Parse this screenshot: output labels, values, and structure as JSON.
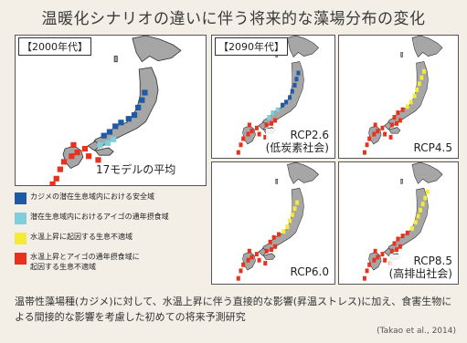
{
  "title": "温暖化シナリオの違いに伴う将来的な藻場分布の変化",
  "panels": {
    "p2000": {
      "period": "【2000年代】",
      "caption": "17モデルの平均"
    },
    "p2090": {
      "period": "【2090年代】"
    },
    "rcp26": {
      "scenario": "RCP2.6",
      "sub": "(低炭素社会)"
    },
    "rcp45": {
      "scenario": "RCP4.5"
    },
    "rcp60": {
      "scenario": "RCP6.0"
    },
    "rcp85": {
      "scenario": "RCP8.5",
      "sub": "(高排出社会)"
    }
  },
  "legend": [
    {
      "color": "#1f5aa6",
      "text": "カジメの潜在生息域内における安全域"
    },
    {
      "color": "#7ecfdc",
      "text": "潜在生息域内におけるアイゴの通年摂食域"
    },
    {
      "color": "#f5ea3a",
      "text": "水温上昇に起因する生息不適域"
    },
    {
      "color": "#e8321e",
      "text": "水温上昇とアイゴの通年摂食域に起因する生息不適域"
    }
  ],
  "description": "温帯性藻場種(カジメ)に対して、水温上昇に伴う直接的な影響(昇温ストレス)に加え、食害生物による間接的な影響を考慮した初めての将来予測研究",
  "citation": "(Takao et al., 2014)",
  "colors": {
    "land": "#a6a6a6",
    "sea": "#ffffff",
    "blue": "#1f5aa6",
    "cyan": "#7ecfdc",
    "yellow": "#f5ea3a",
    "red": "#e8321e"
  }
}
